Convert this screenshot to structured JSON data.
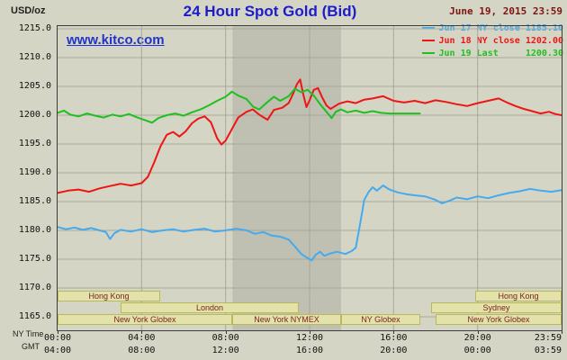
{
  "header": {
    "units_label": "USD/oz",
    "title": "24 Hour Spot Gold (Bid)",
    "timestamp": "June 19, 2015 23:59",
    "watermark": "www.kitco.com"
  },
  "legend": {
    "items": [
      {
        "label": "Jun 17 NY close 1185.10",
        "color": "#45aaee"
      },
      {
        "label": "Jun 18 NY close 1202.00",
        "color": "#ee1515"
      },
      {
        "label": "Jun 19 Last     1200.30",
        "color": "#1fbf1f"
      }
    ]
  },
  "axes": {
    "ny_time_label": "NY Time",
    "gmt_label": "GMT",
    "y_ticks": [
      "1215.0",
      "1210.0",
      "1205.0",
      "1200.0",
      "1195.0",
      "1190.0",
      "1185.0",
      "1180.0",
      "1175.0",
      "1170.0",
      "1165.0"
    ],
    "x_ticks": [
      {
        "hour": 0,
        "ny": "00:00",
        "gmt": "04:00"
      },
      {
        "hour": 4,
        "ny": "04:00",
        "gmt": "08:00"
      },
      {
        "hour": 8,
        "ny": "08:00",
        "gmt": "12:00"
      },
      {
        "hour": 12,
        "ny": "12:00",
        "gmt": "16:00"
      },
      {
        "hour": 16,
        "ny": "16:00",
        "gmt": "20:00"
      },
      {
        "hour": 20,
        "ny": "20:00",
        "gmt": "00:00"
      },
      {
        "hour": 24,
        "ny": "23:59",
        "gmt": "03:59"
      }
    ]
  },
  "sessions": [
    {
      "label": "Hong Kong",
      "row": 0,
      "start": 0,
      "end": 4.9
    },
    {
      "label": "Hong Kong",
      "row": 0,
      "start": 19.9,
      "end": 24
    },
    {
      "label": "London",
      "row": 1,
      "start": 3.0,
      "end": 11.5
    },
    {
      "label": "Sydney",
      "row": 1,
      "start": 17.8,
      "end": 24
    },
    {
      "label": "New York Globex",
      "row": 2,
      "start": 0,
      "end": 8.33
    },
    {
      "label": "New York NYMEX",
      "row": 2,
      "start": 8.33,
      "end": 13.5
    },
    {
      "label": "NY Globex",
      "row": 2,
      "start": 13.5,
      "end": 17.25
    },
    {
      "label": "New York Globex",
      "row": 2,
      "start": 18.0,
      "end": 24
    }
  ],
  "chart_data": {
    "type": "line",
    "title": "24 Hour Spot Gold (Bid)",
    "ylabel": "USD/oz",
    "xlabel": "NY Time",
    "xlim": [
      0,
      24
    ],
    "ylim": [
      1165,
      1215
    ],
    "grid": true,
    "legend_position": "top-right",
    "highlight_band": {
      "start": 8.33,
      "end": 13.5
    },
    "series": [
      {
        "name": "Jun 17 NY close",
        "final": 1185.1,
        "color": "#45aaee",
        "points": [
          [
            0,
            1180.6
          ],
          [
            0.4,
            1180.2
          ],
          [
            0.8,
            1180.5
          ],
          [
            1.2,
            1180.1
          ],
          [
            1.6,
            1180.4
          ],
          [
            2,
            1180
          ],
          [
            2.3,
            1179.7
          ],
          [
            2.5,
            1178.5
          ],
          [
            2.7,
            1179.5
          ],
          [
            3,
            1180.1
          ],
          [
            3.5,
            1179.8
          ],
          [
            4,
            1180.2
          ],
          [
            4.5,
            1179.7
          ],
          [
            5,
            1180
          ],
          [
            5.5,
            1180.2
          ],
          [
            6,
            1179.8
          ],
          [
            6.5,
            1180.1
          ],
          [
            7,
            1180.3
          ],
          [
            7.5,
            1179.8
          ],
          [
            8,
            1180
          ],
          [
            8.5,
            1180.3
          ],
          [
            9,
            1180
          ],
          [
            9.4,
            1179.4
          ],
          [
            9.8,
            1179.7
          ],
          [
            10.2,
            1179.1
          ],
          [
            10.6,
            1178.9
          ],
          [
            11,
            1178.4
          ],
          [
            11.3,
            1177.2
          ],
          [
            11.6,
            1175.9
          ],
          [
            11.9,
            1175.2
          ],
          [
            12.1,
            1174.8
          ],
          [
            12.3,
            1175.8
          ],
          [
            12.5,
            1176.3
          ],
          [
            12.7,
            1175.6
          ],
          [
            13,
            1176
          ],
          [
            13.3,
            1176.3
          ],
          [
            13.7,
            1175.9
          ],
          [
            14,
            1176.4
          ],
          [
            14.2,
            1177
          ],
          [
            14.4,
            1181
          ],
          [
            14.6,
            1185.3
          ],
          [
            14.8,
            1186.6
          ],
          [
            15,
            1187.5
          ],
          [
            15.2,
            1186.9
          ],
          [
            15.5,
            1187.8
          ],
          [
            15.8,
            1187.1
          ],
          [
            16.2,
            1186.6
          ],
          [
            16.6,
            1186.3
          ],
          [
            17,
            1186.1
          ],
          [
            17.5,
            1185.9
          ],
          [
            18,
            1185.3
          ],
          [
            18.3,
            1184.7
          ],
          [
            18.7,
            1185.2
          ],
          [
            19,
            1185.7
          ],
          [
            19.5,
            1185.4
          ],
          [
            20,
            1185.9
          ],
          [
            20.5,
            1185.6
          ],
          [
            21,
            1186.1
          ],
          [
            21.5,
            1186.5
          ],
          [
            22,
            1186.8
          ],
          [
            22.5,
            1187.2
          ],
          [
            23,
            1186.9
          ],
          [
            23.5,
            1186.7
          ],
          [
            24,
            1187
          ]
        ]
      },
      {
        "name": "Jun 18 NY close",
        "final": 1202.0,
        "color": "#ee1515",
        "points": [
          [
            0,
            1186.5
          ],
          [
            0.5,
            1186.9
          ],
          [
            1,
            1187.1
          ],
          [
            1.5,
            1186.7
          ],
          [
            2,
            1187.3
          ],
          [
            2.5,
            1187.7
          ],
          [
            3,
            1188.1
          ],
          [
            3.5,
            1187.8
          ],
          [
            4,
            1188.2
          ],
          [
            4.3,
            1189.3
          ],
          [
            4.6,
            1191.8
          ],
          [
            4.9,
            1194.6
          ],
          [
            5.2,
            1196.6
          ],
          [
            5.5,
            1197.1
          ],
          [
            5.8,
            1196.3
          ],
          [
            6.1,
            1197.2
          ],
          [
            6.4,
            1198.6
          ],
          [
            6.7,
            1199.4
          ],
          [
            7,
            1199.8
          ],
          [
            7.3,
            1198.8
          ],
          [
            7.6,
            1196
          ],
          [
            7.8,
            1194.9
          ],
          [
            8,
            1195.6
          ],
          [
            8.3,
            1197.6
          ],
          [
            8.6,
            1199.6
          ],
          [
            9,
            1200.6
          ],
          [
            9.3,
            1201
          ],
          [
            9.6,
            1200.1
          ],
          [
            10,
            1199.2
          ],
          [
            10.3,
            1200.9
          ],
          [
            10.7,
            1201.3
          ],
          [
            11,
            1202.1
          ],
          [
            11.2,
            1203.6
          ],
          [
            11.4,
            1205.4
          ],
          [
            11.55,
            1206.2
          ],
          [
            11.7,
            1203.6
          ],
          [
            11.85,
            1201.4
          ],
          [
            12,
            1202.6
          ],
          [
            12.2,
            1204.4
          ],
          [
            12.4,
            1204.7
          ],
          [
            12.6,
            1203.1
          ],
          [
            12.8,
            1201.7
          ],
          [
            13,
            1201.1
          ],
          [
            13.4,
            1202
          ],
          [
            13.8,
            1202.4
          ],
          [
            14.2,
            1202.1
          ],
          [
            14.6,
            1202.7
          ],
          [
            15,
            1202.9
          ],
          [
            15.5,
            1203.3
          ],
          [
            16,
            1202.5
          ],
          [
            16.5,
            1202.2
          ],
          [
            17,
            1202.5
          ],
          [
            17.5,
            1202.1
          ],
          [
            18,
            1202.6
          ],
          [
            18.5,
            1202.3
          ],
          [
            19,
            1201.9
          ],
          [
            19.5,
            1201.6
          ],
          [
            20,
            1202.1
          ],
          [
            20.5,
            1202.5
          ],
          [
            21,
            1202.9
          ],
          [
            21.4,
            1202.2
          ],
          [
            21.8,
            1201.6
          ],
          [
            22.2,
            1201.1
          ],
          [
            22.6,
            1200.7
          ],
          [
            23,
            1200.3
          ],
          [
            23.4,
            1200.6
          ],
          [
            23.7,
            1200.2
          ],
          [
            24,
            1200
          ]
        ]
      },
      {
        "name": "Jun 19 Last",
        "final": 1200.3,
        "color": "#1fbf1f",
        "points": [
          [
            0,
            1200.4
          ],
          [
            0.3,
            1200.8
          ],
          [
            0.6,
            1200.1
          ],
          [
            1,
            1199.8
          ],
          [
            1.4,
            1200.3
          ],
          [
            1.8,
            1199.9
          ],
          [
            2.2,
            1199.6
          ],
          [
            2.6,
            1200.1
          ],
          [
            3,
            1199.8
          ],
          [
            3.4,
            1200.2
          ],
          [
            3.8,
            1199.6
          ],
          [
            4.2,
            1199.1
          ],
          [
            4.5,
            1198.7
          ],
          [
            4.8,
            1199.5
          ],
          [
            5.2,
            1200
          ],
          [
            5.6,
            1200.3
          ],
          [
            6,
            1199.9
          ],
          [
            6.4,
            1200.5
          ],
          [
            6.8,
            1201
          ],
          [
            7.2,
            1201.7
          ],
          [
            7.6,
            1202.5
          ],
          [
            8,
            1203.2
          ],
          [
            8.3,
            1204.1
          ],
          [
            8.6,
            1203.4
          ],
          [
            9,
            1202.8
          ],
          [
            9.3,
            1201.5
          ],
          [
            9.6,
            1201
          ],
          [
            10,
            1202.3
          ],
          [
            10.3,
            1203.2
          ],
          [
            10.6,
            1202.5
          ],
          [
            11,
            1203.3
          ],
          [
            11.3,
            1204.6
          ],
          [
            11.6,
            1204
          ],
          [
            11.9,
            1204.4
          ],
          [
            12.2,
            1203.4
          ],
          [
            12.5,
            1201.9
          ],
          [
            12.8,
            1200.6
          ],
          [
            13.05,
            1199.5
          ],
          [
            13.25,
            1200.6
          ],
          [
            13.5,
            1201
          ],
          [
            13.8,
            1200.5
          ],
          [
            14.2,
            1200.8
          ],
          [
            14.6,
            1200.4
          ],
          [
            15,
            1200.7
          ],
          [
            15.4,
            1200.4
          ],
          [
            15.8,
            1200.3
          ],
          [
            17.25,
            1200.3
          ]
        ]
      }
    ]
  },
  "colors": {
    "background": "#d5d5c5",
    "plot_border": "#3c3c3c",
    "grid": "#a9a999",
    "band": "rgba(80,80,80,0.16)",
    "title": "#1c1ccc",
    "timestamp": "#7c1414",
    "link": "#2233cc",
    "axis_text": "#222222",
    "tick_text": "#111111",
    "session_fill": "#e2e2aa",
    "session_border": "#b9b95a",
    "session_text": "#7c2222"
  }
}
